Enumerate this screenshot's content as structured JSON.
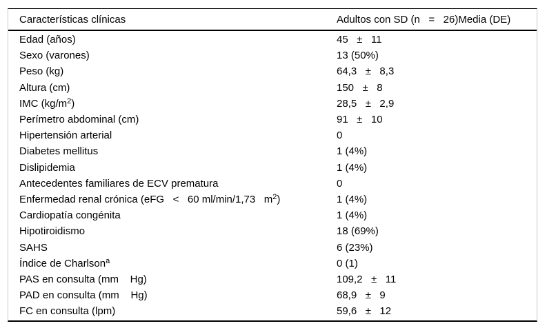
{
  "table": {
    "header": {
      "col1": "Características clínicas",
      "col2": "Adultos con SD (n   =   26)Media (DE)"
    },
    "rows": [
      {
        "label": [
          "Edad (años)"
        ],
        "value": "45   ±   11"
      },
      {
        "label": [
          "Sexo (varones)"
        ],
        "value": "13 (50%)"
      },
      {
        "label": [
          "Peso (kg)"
        ],
        "value": "64,3   ±   8,3"
      },
      {
        "label": [
          "Altura (cm)"
        ],
        "value": "150   ±   8"
      },
      {
        "label": [
          "IMC (kg/m",
          {
            "sup": "2"
          },
          ")"
        ],
        "value": "28,5   ±   2,9"
      },
      {
        "label": [
          "Perímetro abdominal (cm)"
        ],
        "value": "91   ±   10"
      },
      {
        "label": [
          "Hipertensión arterial"
        ],
        "value": "0"
      },
      {
        "label": [
          "Diabetes mellitus"
        ],
        "value": "1 (4%)"
      },
      {
        "label": [
          "Dislipidemia"
        ],
        "value": "1 (4%)"
      },
      {
        "label": [
          "Antecedentes familiares de ECV prematura"
        ],
        "value": "0"
      },
      {
        "label": [
          "Enfermedad renal crónica (eFG   <   60 ml/min/1,73   m",
          {
            "sup": "2"
          },
          ")"
        ],
        "value": "1 (4%)"
      },
      {
        "label": [
          "Cardiopatía congénita"
        ],
        "value": "1 (4%)"
      },
      {
        "label": [
          "Hipotiroidismo"
        ],
        "value": "18 (69%)"
      },
      {
        "label": [
          "SAHS"
        ],
        "value": "6 (23%)"
      },
      {
        "label": [
          "Índice de Charlson",
          {
            "sup": "a"
          }
        ],
        "value": "0 (1)"
      },
      {
        "label": [
          "PAS en consulta (mm    Hg)"
        ],
        "value": "109,2   ±   11"
      },
      {
        "label": [
          "PAD en consulta (mm    Hg)"
        ],
        "value": "68,9   ±   9"
      },
      {
        "label": [
          "FC en consulta (lpm)"
        ],
        "value": "59,6   ±   12"
      }
    ],
    "colors": {
      "rule": "#000000",
      "side_border": "#c9c9c9",
      "text": "#000000",
      "background": "#ffffff"
    }
  }
}
